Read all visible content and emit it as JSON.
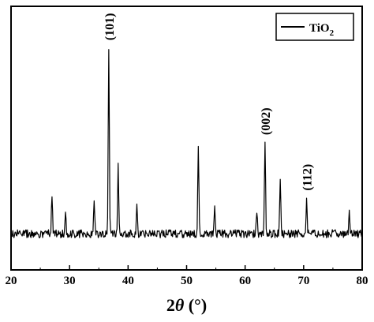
{
  "chart_data": {
    "type": "line",
    "title": "",
    "xlabel": "2θ (°)",
    "xlabel_parts": {
      "var": "2",
      "theta": "θ",
      "unit": " (°)"
    },
    "ylabel": "",
    "xlim": [
      20,
      80
    ],
    "x_ticks": [
      20,
      30,
      40,
      50,
      60,
      70,
      80
    ],
    "y_ticks_shown": false,
    "grid": false,
    "legend": {
      "placement": "top-right",
      "entries": [
        {
          "name": "TiO₂",
          "main": "TiO",
          "sub": "2",
          "color": "#000000"
        }
      ]
    },
    "series": [
      {
        "name": "TiO₂",
        "color": "#000000",
        "baseline": 0.08,
        "noise": 0.022,
        "peaks": [
          {
            "x": 27.0,
            "height": 0.22
          },
          {
            "x": 29.3,
            "height": 0.12
          },
          {
            "x": 34.2,
            "height": 0.19
          },
          {
            "x": 36.7,
            "height": 1.0
          },
          {
            "x": 38.3,
            "height": 0.36
          },
          {
            "x": 41.5,
            "height": 0.14
          },
          {
            "x": 52.0,
            "height": 0.47
          },
          {
            "x": 54.8,
            "height": 0.16
          },
          {
            "x": 62.0,
            "height": 0.12
          },
          {
            "x": 63.4,
            "height": 0.49
          },
          {
            "x": 66.0,
            "height": 0.28
          },
          {
            "x": 70.5,
            "height": 0.19
          },
          {
            "x": 77.8,
            "height": 0.11
          }
        ]
      }
    ],
    "annotations": [
      {
        "text": "(101)",
        "x": 36.7
      },
      {
        "text": "(002)",
        "x": 63.4
      },
      {
        "text": "(112)",
        "x": 70.5
      }
    ]
  }
}
